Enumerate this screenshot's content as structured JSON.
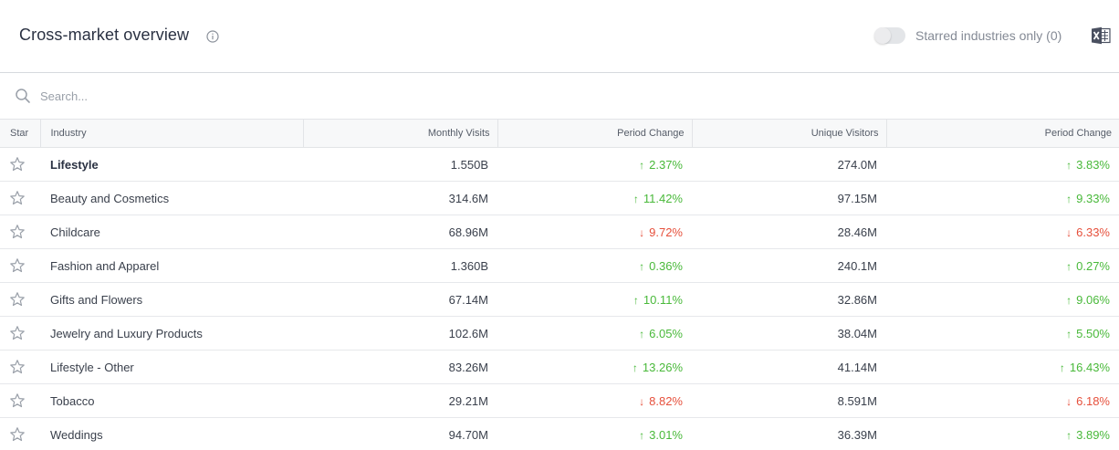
{
  "header": {
    "title": "Cross-market overview",
    "toggle_label": "Starred industries only (0)"
  },
  "search": {
    "placeholder": "Search..."
  },
  "table": {
    "columns": [
      "Star",
      "Industry",
      "Monthly Visits",
      "Period Change",
      "Unique Visitors",
      "Period Change"
    ],
    "rows": [
      {
        "industry": "Lifestyle",
        "monthly_visits": "1.550B",
        "visits_change": "2.37%",
        "visits_dir": "up",
        "unique_visitors": "274.0M",
        "uv_change": "3.83%",
        "uv_dir": "up"
      },
      {
        "industry": "Beauty and Cosmetics",
        "monthly_visits": "314.6M",
        "visits_change": "11.42%",
        "visits_dir": "up",
        "unique_visitors": "97.15M",
        "uv_change": "9.33%",
        "uv_dir": "up"
      },
      {
        "industry": "Childcare",
        "monthly_visits": "68.96M",
        "visits_change": "9.72%",
        "visits_dir": "down",
        "unique_visitors": "28.46M",
        "uv_change": "6.33%",
        "uv_dir": "down"
      },
      {
        "industry": "Fashion and Apparel",
        "monthly_visits": "1.360B",
        "visits_change": "0.36%",
        "visits_dir": "up",
        "unique_visitors": "240.1M",
        "uv_change": "0.27%",
        "uv_dir": "up"
      },
      {
        "industry": "Gifts and Flowers",
        "monthly_visits": "67.14M",
        "visits_change": "10.11%",
        "visits_dir": "up",
        "unique_visitors": "32.86M",
        "uv_change": "9.06%",
        "uv_dir": "up"
      },
      {
        "industry": "Jewelry and Luxury Products",
        "monthly_visits": "102.6M",
        "visits_change": "6.05%",
        "visits_dir": "up",
        "unique_visitors": "38.04M",
        "uv_change": "5.50%",
        "uv_dir": "up"
      },
      {
        "industry": "Lifestyle - Other",
        "monthly_visits": "83.26M",
        "visits_change": "13.26%",
        "visits_dir": "up",
        "unique_visitors": "41.14M",
        "uv_change": "16.43%",
        "uv_dir": "up"
      },
      {
        "industry": "Tobacco",
        "monthly_visits": "29.21M",
        "visits_change": "8.82%",
        "visits_dir": "down",
        "unique_visitors": "8.591M",
        "uv_change": "6.18%",
        "uv_dir": "down"
      },
      {
        "industry": "Weddings",
        "monthly_visits": "94.70M",
        "visits_change": "3.01%",
        "visits_dir": "up",
        "unique_visitors": "36.39M",
        "uv_change": "3.89%",
        "uv_dir": "up"
      }
    ]
  },
  "colors": {
    "positive": "#49b93a",
    "negative": "#e6503c",
    "header_bg": "#f7f8f9",
    "title": "#2a3142"
  },
  "icons": [
    "info-icon",
    "toggle-switch",
    "excel-export-icon",
    "search-icon",
    "star-outline-icon",
    "arrow-up-icon",
    "arrow-down-icon"
  ]
}
